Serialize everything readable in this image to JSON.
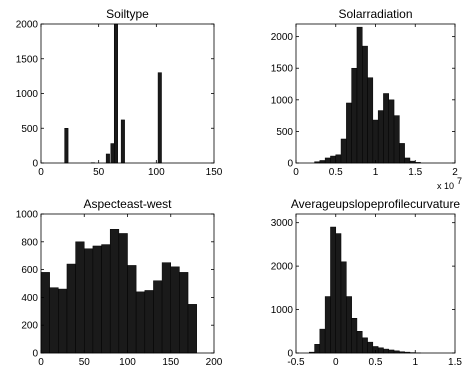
{
  "figure": {
    "charts": [
      {
        "type": "bar",
        "title": "Soiltype",
        "xlim": [
          0,
          150
        ],
        "ylim": [
          0,
          2000
        ],
        "xticks": [
          0,
          50,
          100,
          150
        ],
        "yticks": [
          0,
          500,
          1000,
          1500,
          2000
        ],
        "xtick_labels": [
          "0",
          "50",
          "100",
          "150"
        ],
        "ytick_labels": [
          "0",
          "500",
          "1000",
          "1500",
          "2000"
        ],
        "bar_width": 3,
        "x": [
          22,
          45,
          58,
          62,
          65,
          71,
          103
        ],
        "values": [
          500,
          5,
          130,
          280,
          2000,
          620,
          1300
        ]
      },
      {
        "type": "bar",
        "title": "Solarradiation",
        "xlim": [
          0,
          2
        ],
        "ylim": [
          0,
          2200
        ],
        "xticks": [
          0,
          0.5,
          1,
          1.5,
          2
        ],
        "yticks": [
          0,
          500,
          1000,
          1500,
          2000
        ],
        "xtick_labels": [
          "0",
          "0.5",
          "1",
          "1.5",
          "2"
        ],
        "ytick_labels": [
          "0",
          "500",
          "1000",
          "1500",
          "2000"
        ],
        "x_multiplier": "x 10",
        "x_multiplier_exp": "7",
        "bar_width": 0.0667,
        "x": [
          0.267,
          0.333,
          0.4,
          0.467,
          0.533,
          0.6,
          0.667,
          0.733,
          0.8,
          0.867,
          0.933,
          1.0,
          1.067,
          1.133,
          1.2,
          1.267,
          1.333,
          1.4,
          1.467,
          1.533
        ],
        "values": [
          20,
          40,
          80,
          110,
          130,
          380,
          950,
          1500,
          2150,
          1850,
          1350,
          680,
          830,
          1100,
          1000,
          750,
          310,
          80,
          30,
          10
        ]
      },
      {
        "type": "bar",
        "title": "Aspecteast-west",
        "xlim": [
          0,
          200
        ],
        "ylim": [
          0,
          1000
        ],
        "xticks": [
          0,
          50,
          100,
          150,
          200
        ],
        "yticks": [
          0,
          200,
          400,
          600,
          800,
          1000
        ],
        "xtick_labels": [
          "0",
          "50",
          "100",
          "150",
          "200"
        ],
        "ytick_labels": [
          "0",
          "200",
          "400",
          "600",
          "800",
          "1000"
        ],
        "bar_width": 10,
        "x": [
          5,
          15,
          25,
          35,
          45,
          55,
          65,
          75,
          85,
          95,
          105,
          115,
          125,
          135,
          145,
          155,
          165,
          175
        ],
        "values": [
          580,
          470,
          460,
          640,
          800,
          750,
          770,
          780,
          890,
          860,
          630,
          440,
          450,
          520,
          650,
          620,
          580,
          350
        ]
      },
      {
        "type": "bar",
        "title": "Averageupslopeprofilecurvature",
        "xlim": [
          -0.5,
          1.5
        ],
        "ylim": [
          0,
          3200
        ],
        "xticks": [
          -0.5,
          0,
          0.5,
          1,
          1.5
        ],
        "yticks": [
          0,
          1000,
          2000,
          3000
        ],
        "xtick_labels": [
          "-0.5",
          "0",
          "0.5",
          "1",
          "1.5"
        ],
        "ytick_labels": [
          "0",
          "1000",
          "2000",
          "3000"
        ],
        "bar_width": 0.0667,
        "x": [
          -0.3,
          -0.233,
          -0.167,
          -0.1,
          -0.033,
          0.033,
          0.1,
          0.167,
          0.233,
          0.3,
          0.367,
          0.433,
          0.5,
          0.567,
          0.633,
          0.7,
          0.767,
          0.833,
          0.9,
          0.967,
          1.033
        ],
        "values": [
          20,
          200,
          550,
          1300,
          2900,
          2750,
          2100,
          1300,
          800,
          500,
          350,
          250,
          150,
          120,
          90,
          70,
          50,
          30,
          20,
          10,
          5
        ]
      }
    ]
  }
}
